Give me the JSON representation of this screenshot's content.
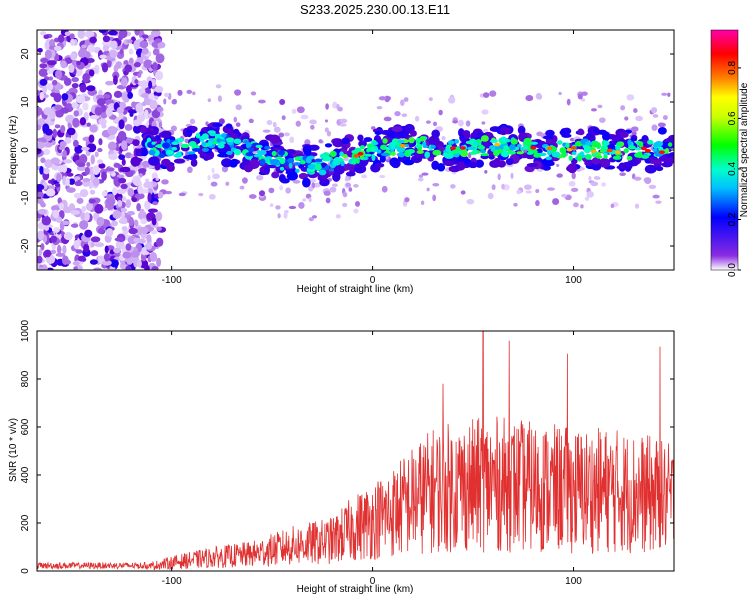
{
  "title": "S233.2025.230.00.13.E11",
  "colors": {
    "snr_line": "#e03030",
    "frame": "#000000"
  },
  "chart_data": [
    {
      "type": "heatmap",
      "name": "spectrogram",
      "xlabel": "Height of straight line (km)",
      "ylabel": "Frequency (Hz)",
      "xlim": [
        -167,
        150
      ],
      "ylim": [
        -25,
        25
      ],
      "xticks": [
        -100,
        0,
        100
      ],
      "yticks": [
        -20,
        -10,
        0,
        10,
        20
      ],
      "colorbar": {
        "label": "Normalized spectral amplitude",
        "range": [
          0,
          0.95
        ],
        "ticks": [
          0.0,
          0.2,
          0.4,
          0.6,
          0.8
        ],
        "tick_labels": [
          "0.0",
          "0.2",
          "0.4",
          "0.6",
          "0.8"
        ],
        "colormap": [
          "#ffffff",
          "#8a2be2",
          "#0000ff",
          "#00ffff",
          "#00ff00",
          "#ffff00",
          "#ff8000",
          "#ff0000",
          "#ff00ff"
        ]
      },
      "ridge": {
        "description_points_x": [
          -115,
          -100,
          -80,
          -60,
          -40,
          -25,
          -10,
          0,
          20,
          40,
          60,
          80,
          100,
          120,
          148
        ],
        "description_points_y": [
          1,
          0,
          2,
          0,
          -3,
          -3,
          -1,
          0,
          1,
          0,
          1,
          0,
          0,
          0,
          0
        ]
      }
    },
    {
      "type": "line",
      "name": "snr",
      "xlabel": "Height of straight line (km)",
      "ylabel": "SNR (10 * v/v)",
      "xlim": [
        -167,
        150
      ],
      "ylim": [
        0,
        1000
      ],
      "xticks": [
        -100,
        0,
        100
      ],
      "yticks": [
        0,
        200,
        400,
        600,
        800,
        1000
      ],
      "envelope": {
        "x": [
          -167,
          -110,
          -100,
          -80,
          -60,
          -40,
          -20,
          -10,
          0,
          10,
          20,
          30,
          40,
          60,
          80,
          100,
          120,
          140,
          150
        ],
        "y": [
          30,
          30,
          50,
          80,
          100,
          150,
          180,
          250,
          300,
          350,
          420,
          480,
          500,
          520,
          500,
          480,
          480,
          450,
          420
        ]
      },
      "peaks": [
        {
          "x": 55,
          "y": 1000
        },
        {
          "x": 68,
          "y": 960
        },
        {
          "x": 143,
          "y": 935
        },
        {
          "x": 97,
          "y": 905
        },
        {
          "x": 35,
          "y": 780
        }
      ]
    }
  ]
}
